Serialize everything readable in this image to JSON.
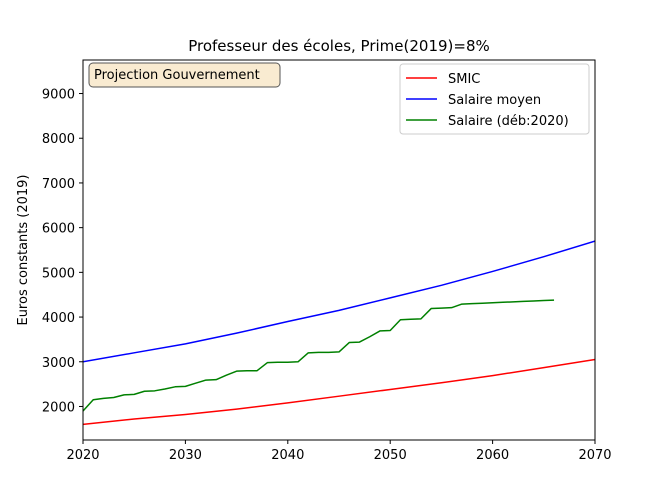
{
  "chart_data": {
    "type": "line",
    "title": "Professeur des écoles, Prime(2019)=8%",
    "xlabel": "",
    "ylabel": "Euros constants (2019)",
    "xlim": [
      2020,
      2070
    ],
    "ylim": [
      1250,
      9750
    ],
    "xticks": [
      2020,
      2030,
      2040,
      2050,
      2060,
      2070
    ],
    "yticks": [
      2000,
      3000,
      4000,
      5000,
      6000,
      7000,
      8000,
      9000
    ],
    "grid": false,
    "legend": "top-right",
    "annotation": "Projection Gouvernement",
    "series": [
      {
        "name": "SMIC",
        "color": "#ff0000",
        "x": [
          2020,
          2025,
          2030,
          2035,
          2040,
          2045,
          2050,
          2055,
          2060,
          2065,
          2070
        ],
        "y": [
          1600,
          1720,
          1820,
          1940,
          2080,
          2230,
          2380,
          2530,
          2690,
          2870,
          3050
        ]
      },
      {
        "name": "Salaire moyen",
        "color": "#0000ff",
        "x": [
          2020,
          2025,
          2030,
          2035,
          2040,
          2045,
          2050,
          2055,
          2060,
          2065,
          2070
        ],
        "y": [
          3000,
          3200,
          3400,
          3640,
          3900,
          4150,
          4430,
          4710,
          5020,
          5350,
          5700
        ]
      },
      {
        "name": "Salaire (déb:2020)",
        "color": "#008000",
        "x": [
          2020,
          2021,
          2022,
          2023,
          2024,
          2025,
          2026,
          2027,
          2028,
          2029,
          2030,
          2031,
          2032,
          2033,
          2034,
          2035,
          2036,
          2037,
          2038,
          2039,
          2040,
          2041,
          2042,
          2043,
          2044,
          2045,
          2046,
          2047,
          2048,
          2049,
          2050,
          2051,
          2052,
          2053,
          2054,
          2055,
          2056,
          2057,
          2058,
          2059,
          2060,
          2061,
          2062,
          2063,
          2064,
          2065,
          2066
        ],
        "y": [
          1900,
          2150,
          2180,
          2200,
          2260,
          2270,
          2340,
          2350,
          2390,
          2440,
          2450,
          2520,
          2590,
          2600,
          2700,
          2790,
          2800,
          2800,
          2980,
          2990,
          2990,
          3000,
          3200,
          3210,
          3210,
          3220,
          3430,
          3440,
          3560,
          3690,
          3700,
          3940,
          3950,
          3960,
          4190,
          4200,
          4210,
          4290,
          4300,
          4310,
          4320,
          4330,
          4340,
          4350,
          4360,
          4370,
          4380
        ]
      }
    ]
  }
}
